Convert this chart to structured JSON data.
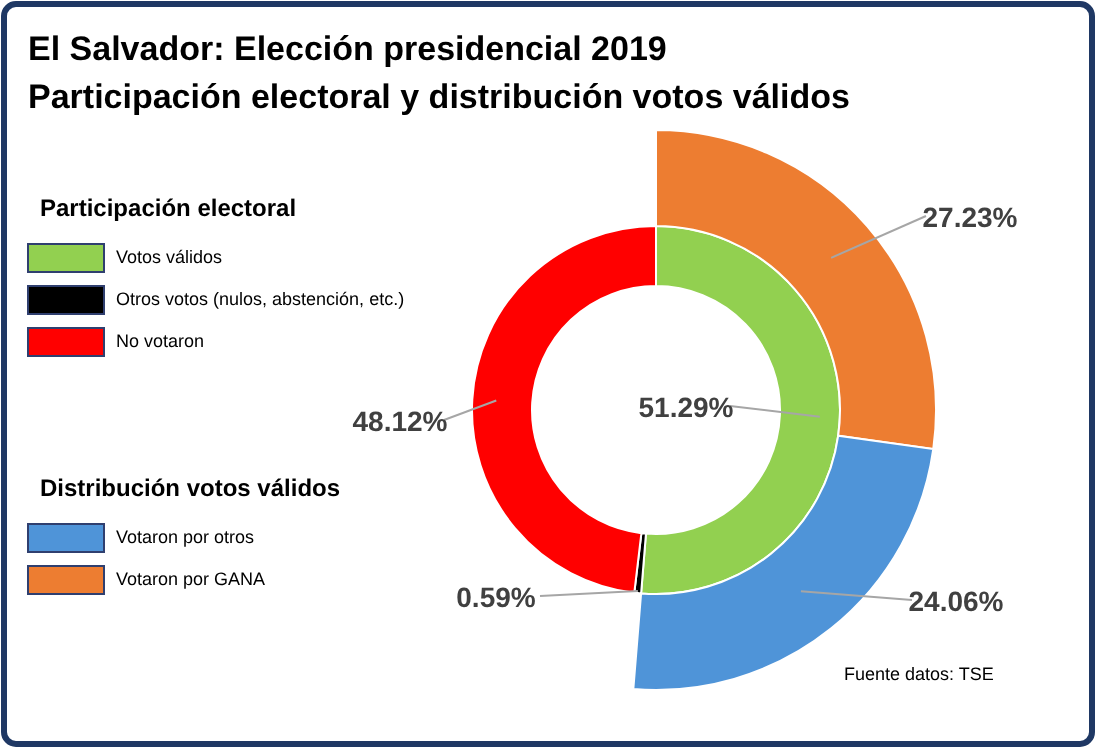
{
  "chart_data": [
    {
      "type": "donut",
      "title": "El Salvador: Elección presidencial 2019",
      "subtitle": "Participación electoral y distribución votos válidos",
      "legend_title": "Participación electoral",
      "legend": "left",
      "categories": [
        "Votos válidos",
        "Otros votos (nulos, abstención, etc.)",
        "No votaron"
      ],
      "values": [
        51.29,
        0.59,
        48.12
      ],
      "colors": [
        "#92d050",
        "#000000",
        "#ff0000"
      ],
      "value_labels": [
        "51.29%",
        "0.59%",
        "48.12%"
      ],
      "annotations": [
        "Fuente datos: TSE"
      ]
    },
    {
      "type": "donut",
      "legend_title": "Distribución votos válidos",
      "legend": "left",
      "categories": [
        "Votaron por GANA",
        "Votaron por otros"
      ],
      "values": [
        27.23,
        24.06
      ],
      "colors": [
        "#ed7d31",
        "#4f94d8"
      ],
      "value_labels": [
        "27.23%",
        "24.06%"
      ]
    }
  ]
}
